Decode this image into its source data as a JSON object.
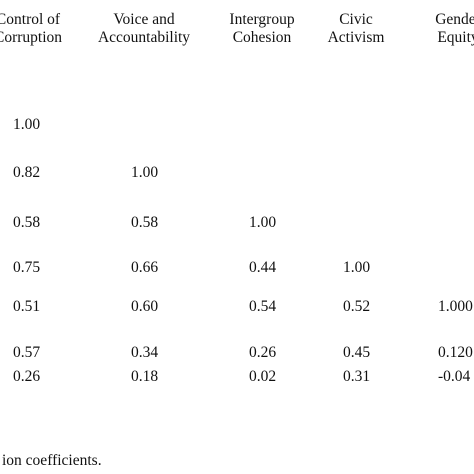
{
  "table": {
    "headers": [
      {
        "line1": "Control of",
        "line2": "Corruption"
      },
      {
        "line1": "Voice and",
        "line2": "Accountability"
      },
      {
        "line1": "Intergroup",
        "line2": "Cohesion"
      },
      {
        "line1": "Civic",
        "line2": "Activism"
      },
      {
        "line1": "Gender",
        "line2": "Equity"
      }
    ],
    "rows": [
      [
        "1.00",
        "",
        "",
        "",
        ""
      ],
      [
        "0.82",
        "1.00",
        "",
        "",
        ""
      ],
      [
        "0.58",
        "0.58",
        "1.00",
        "",
        ""
      ],
      [
        "0.75",
        "0.66",
        "0.44",
        "1.00",
        ""
      ],
      [
        "0.51",
        "0.60",
        "0.54",
        "0.52",
        "1.000"
      ],
      [
        "0.57",
        "0.34",
        "0.26",
        "0.45",
        "0.120"
      ],
      [
        "0.26",
        "0.18",
        "0.02",
        "0.31",
        "-0.04"
      ]
    ]
  },
  "caption": "ion coefficients."
}
